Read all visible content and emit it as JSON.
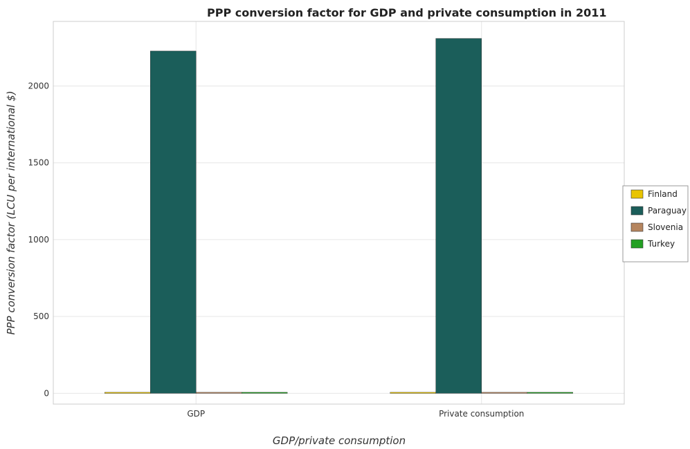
{
  "chart_data": {
    "type": "bar",
    "title": "PPP conversion factor for GDP and private consumption in 2011",
    "xlabel": "GDP/private consumption",
    "ylabel": "PPP conversion factor (LCU per international $)",
    "categories": [
      "GDP",
      " Private consumption"
    ],
    "series": [
      {
        "name": "Finland",
        "values": [
          0.91,
          0.97
        ],
        "color": "#e8c400"
      },
      {
        "name": "Paraguay",
        "values": [
          2227.2,
          2309.3
        ],
        "color": "#1b5e5a"
      },
      {
        "name": "Slovenia",
        "values": [
          0.61,
          0.68
        ],
        "color": "#b5855f"
      },
      {
        "name": "Turkey",
        "values": [
          1.0,
          1.04
        ],
        "color": "#23a023"
      }
    ],
    "yticks": [
      0,
      500,
      1000,
      1500,
      2000
    ],
    "ylim": [
      -70,
      2420
    ],
    "grid": true,
    "legend": "right"
  }
}
